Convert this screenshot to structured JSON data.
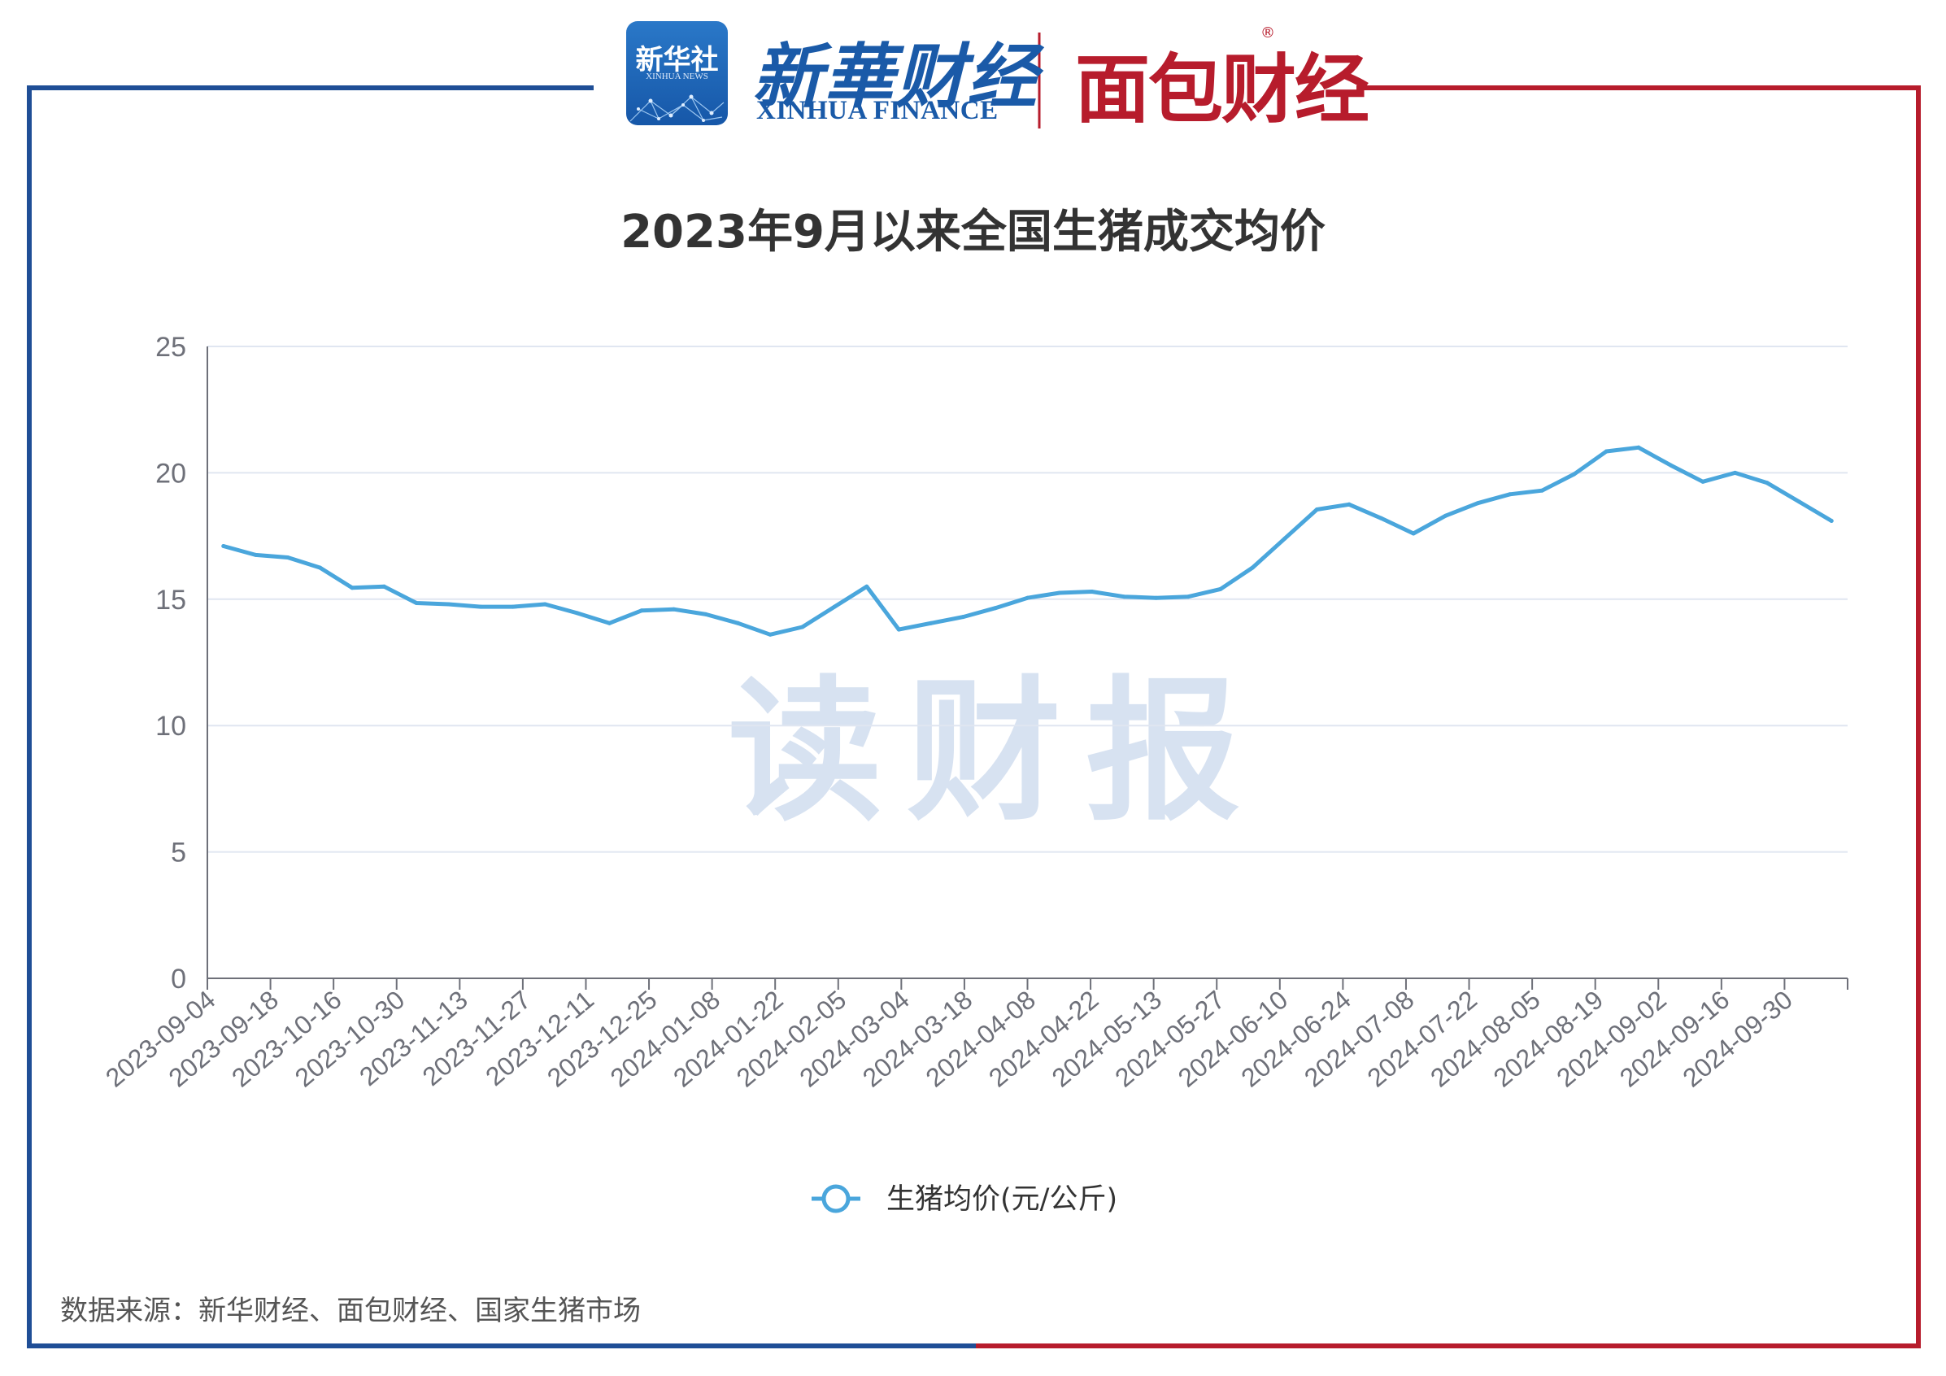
{
  "header": {
    "xinhua_badge_cn": "新华社",
    "xinhua_badge_en": "XINHUA NEWS",
    "xinhua_finance_cn": "新華财经",
    "xinhua_finance_en": "XINHUA FINANCE",
    "mianbao_cn": "面包财经",
    "registered_mark": "®"
  },
  "watermark": "读财报",
  "source_note": "数据来源：新华财经、面包财经、国家生猪市场",
  "colors": {
    "frame_blue": "#1f4e96",
    "frame_red": "#b71c2c",
    "line": "#4aa6dc",
    "grid": "#e0e6f1"
  },
  "chart_data": {
    "type": "line",
    "title": "2023年9月以来全国生猪成交均价",
    "xlabel": "",
    "ylabel": "",
    "ylim": [
      0,
      25
    ],
    "yticks": [
      0,
      5,
      10,
      15,
      20,
      25
    ],
    "grid": true,
    "legend_position": "bottom",
    "x_tick_labels": [
      "2023-09-04",
      "2023-09-18",
      "2023-10-16",
      "2023-10-30",
      "2023-11-13",
      "2023-11-27",
      "2023-12-11",
      "2023-12-25",
      "2024-01-08",
      "2024-01-22",
      "2024-02-05",
      "2024-03-04",
      "2024-03-18",
      "2024-04-08",
      "2024-04-22",
      "2024-05-13",
      "2024-05-27",
      "2024-06-10",
      "2024-06-24",
      "2024-07-08",
      "2024-07-22",
      "2024-08-05",
      "2024-08-19",
      "2024-09-02",
      "2024-09-16",
      "2024-09-30"
    ],
    "series": [
      {
        "name": "生猪均价(元/公斤)",
        "values": [
          17.1,
          16.75,
          16.65,
          16.25,
          15.45,
          15.5,
          14.85,
          14.8,
          14.7,
          14.7,
          14.8,
          14.45,
          14.05,
          14.55,
          14.6,
          14.4,
          14.05,
          13.6,
          13.9,
          14.7,
          15.5,
          13.8,
          14.05,
          14.3,
          14.65,
          15.05,
          15.25,
          15.3,
          15.1,
          15.05,
          15.1,
          15.4,
          16.25,
          17.4,
          18.55,
          18.75,
          18.2,
          17.6,
          18.3,
          18.8,
          19.15,
          19.3,
          19.95,
          20.85,
          21.0,
          20.3,
          19.65,
          20.0,
          19.6,
          18.85,
          18.1
        ]
      }
    ]
  }
}
